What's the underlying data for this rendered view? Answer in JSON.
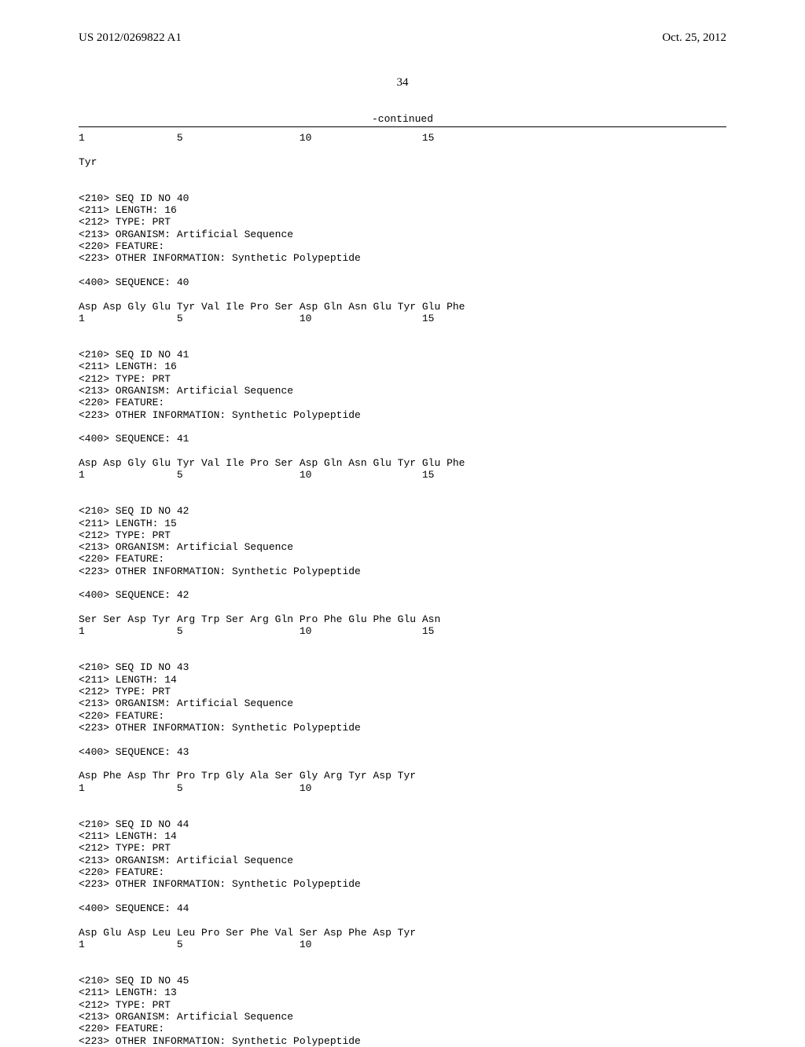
{
  "header": {
    "left": "US 2012/0269822 A1",
    "right": "Oct. 25, 2012"
  },
  "page_number": "34",
  "continued_label": "-continued",
  "seq_lines": [
    "1               5                   10                  15",
    "",
    "Tyr",
    "",
    "",
    "<210> SEQ ID NO 40",
    "<211> LENGTH: 16",
    "<212> TYPE: PRT",
    "<213> ORGANISM: Artificial Sequence",
    "<220> FEATURE:",
    "<223> OTHER INFORMATION: Synthetic Polypeptide",
    "",
    "<400> SEQUENCE: 40",
    "",
    "Asp Asp Gly Glu Tyr Val Ile Pro Ser Asp Gln Asn Glu Tyr Glu Phe",
    "1               5                   10                  15",
    "",
    "",
    "<210> SEQ ID NO 41",
    "<211> LENGTH: 16",
    "<212> TYPE: PRT",
    "<213> ORGANISM: Artificial Sequence",
    "<220> FEATURE:",
    "<223> OTHER INFORMATION: Synthetic Polypeptide",
    "",
    "<400> SEQUENCE: 41",
    "",
    "Asp Asp Gly Glu Tyr Val Ile Pro Ser Asp Gln Asn Glu Tyr Glu Phe",
    "1               5                   10                  15",
    "",
    "",
    "<210> SEQ ID NO 42",
    "<211> LENGTH: 15",
    "<212> TYPE: PRT",
    "<213> ORGANISM: Artificial Sequence",
    "<220> FEATURE:",
    "<223> OTHER INFORMATION: Synthetic Polypeptide",
    "",
    "<400> SEQUENCE: 42",
    "",
    "Ser Ser Asp Tyr Arg Trp Ser Arg Gln Pro Phe Glu Phe Glu Asn",
    "1               5                   10                  15",
    "",
    "",
    "<210> SEQ ID NO 43",
    "<211> LENGTH: 14",
    "<212> TYPE: PRT",
    "<213> ORGANISM: Artificial Sequence",
    "<220> FEATURE:",
    "<223> OTHER INFORMATION: Synthetic Polypeptide",
    "",
    "<400> SEQUENCE: 43",
    "",
    "Asp Phe Asp Thr Pro Trp Gly Ala Ser Gly Arg Tyr Asp Tyr",
    "1               5                   10",
    "",
    "",
    "<210> SEQ ID NO 44",
    "<211> LENGTH: 14",
    "<212> TYPE: PRT",
    "<213> ORGANISM: Artificial Sequence",
    "<220> FEATURE:",
    "<223> OTHER INFORMATION: Synthetic Polypeptide",
    "",
    "<400> SEQUENCE: 44",
    "",
    "Asp Glu Asp Leu Leu Pro Ser Phe Val Ser Asp Phe Asp Tyr",
    "1               5                   10",
    "",
    "",
    "<210> SEQ ID NO 45",
    "<211> LENGTH: 13",
    "<212> TYPE: PRT",
    "<213> ORGANISM: Artificial Sequence",
    "<220> FEATURE:",
    "<223> OTHER INFORMATION: Synthetic Polypeptide"
  ]
}
